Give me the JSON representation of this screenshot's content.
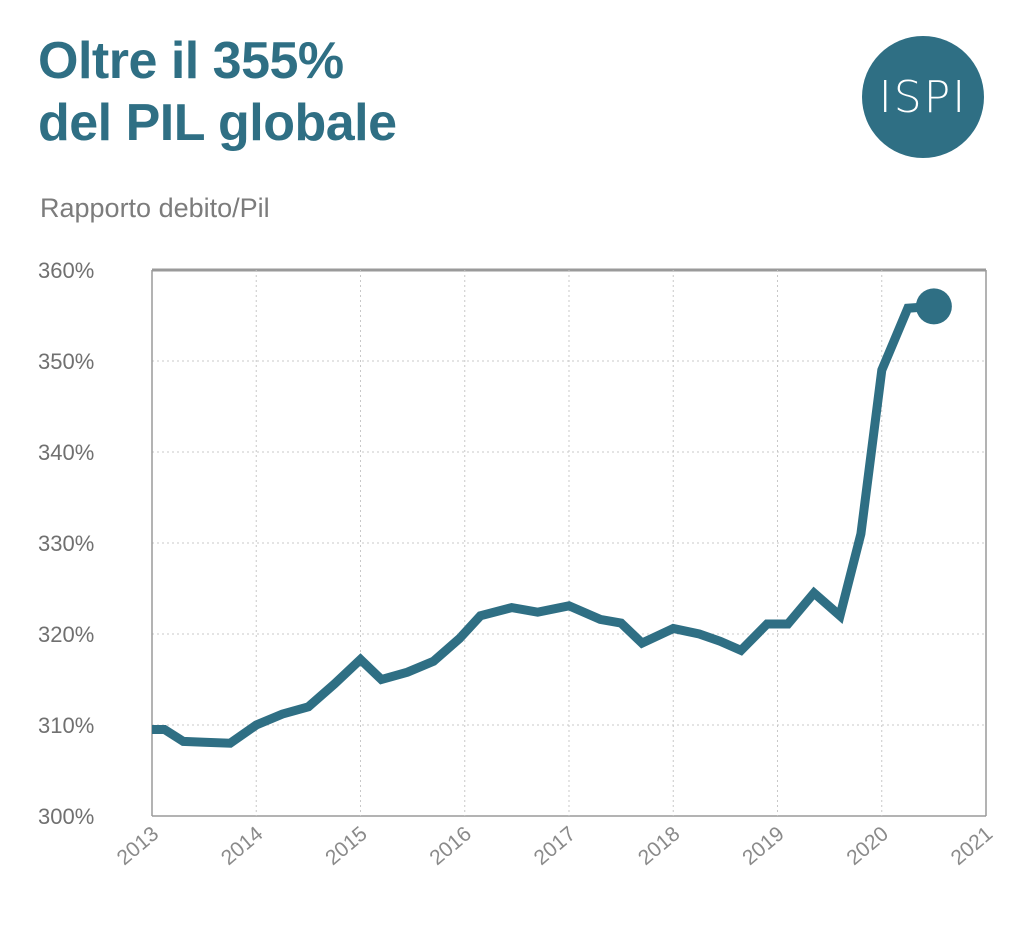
{
  "header": {
    "title_line1": "Oltre il 355%",
    "title_line2": "del PIL globale",
    "subtitle": "Rapporto debito/Pil",
    "logo_text": "ISPI"
  },
  "colors": {
    "accent": "#2f6f84",
    "grid": "#c8c8c8",
    "axis": "#9a9a9a",
    "tick_text": "#707070"
  },
  "chart_data": {
    "type": "line",
    "title": "",
    "xlabel": "",
    "ylabel": "",
    "xlim": [
      2013,
      2021
    ],
    "ylim": [
      300,
      360
    ],
    "x_ticks": [
      2013,
      2014,
      2015,
      2016,
      2017,
      2018,
      2019,
      2020,
      2021
    ],
    "x_tick_labels": [
      "2013",
      "2014",
      "2015",
      "2016",
      "2017",
      "2018",
      "2019",
      "2020",
      "2021"
    ],
    "y_ticks": [
      300,
      310,
      320,
      330,
      340,
      350,
      360
    ],
    "y_tick_labels": [
      "300%",
      "310%",
      "320%",
      "330%",
      "340%",
      "350%",
      "360%"
    ],
    "grid": true,
    "series": [
      {
        "name": "",
        "x": [
          2013.0,
          2013.12,
          2013.3,
          2013.5,
          2013.75,
          2014.0,
          2014.25,
          2014.5,
          2014.75,
          2015.0,
          2015.2,
          2015.45,
          2015.7,
          2015.95,
          2016.15,
          2016.45,
          2016.7,
          2017.0,
          2017.3,
          2017.5,
          2017.7,
          2018.0,
          2018.25,
          2018.45,
          2018.65,
          2018.9,
          2019.1,
          2019.35,
          2019.6,
          2019.8,
          2020.0,
          2020.25,
          2020.5
        ],
        "y": [
          309.5,
          309.5,
          308.2,
          308.1,
          308.0,
          310.0,
          311.2,
          312.0,
          314.5,
          317.2,
          315.0,
          315.8,
          317.0,
          319.5,
          322.0,
          322.9,
          322.4,
          323.1,
          321.6,
          321.2,
          319.0,
          320.6,
          320.0,
          319.2,
          318.2,
          321.1,
          321.1,
          324.5,
          322.0,
          331.0,
          349.0,
          355.8,
          356.0
        ]
      }
    ]
  }
}
